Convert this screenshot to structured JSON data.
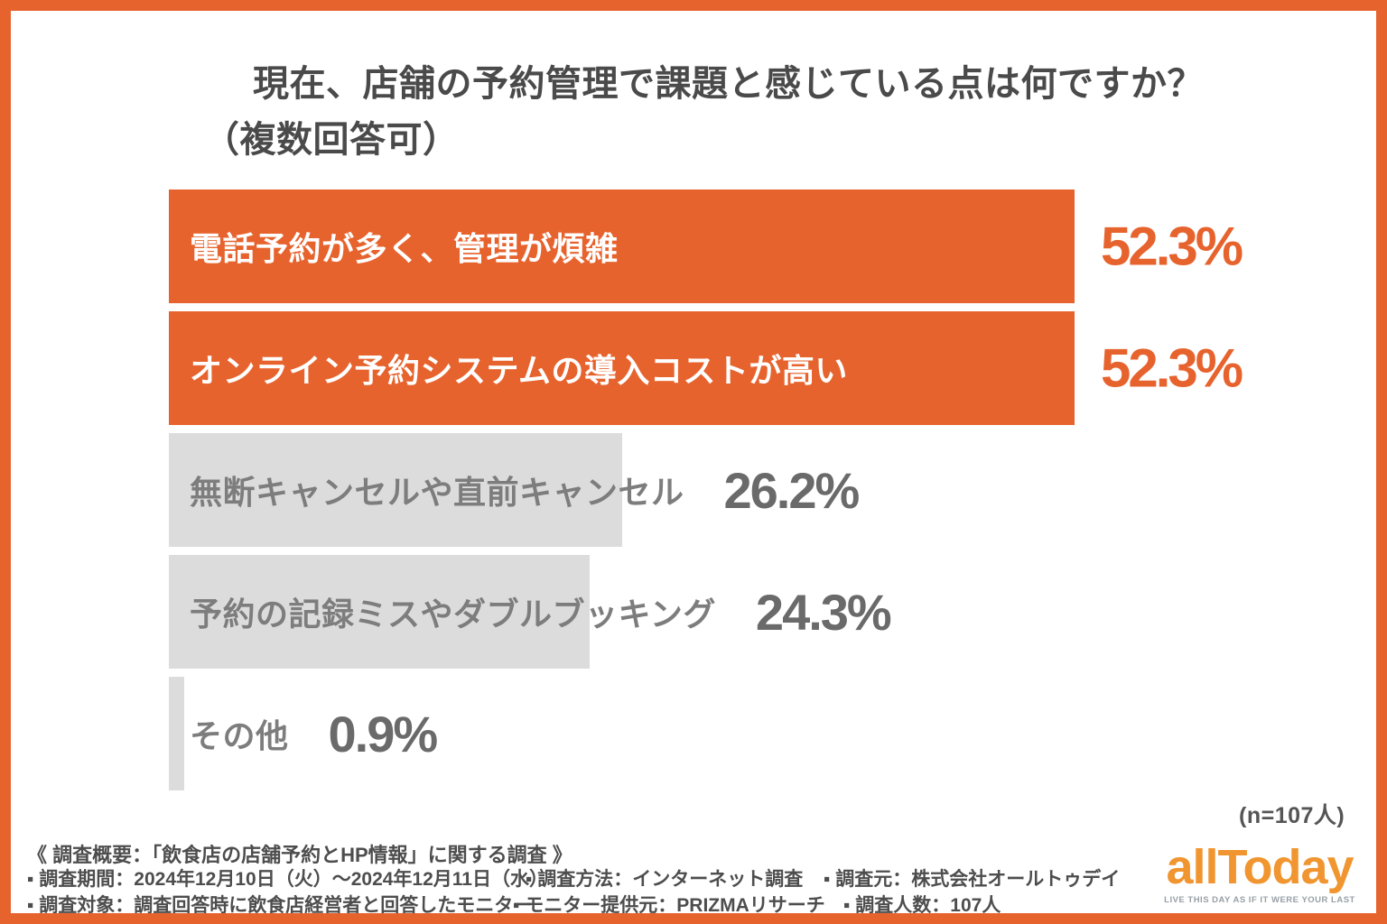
{
  "header": {
    "title_line1": "現在、店舗の予約管理で課題と感じている点は何ですか？",
    "title_line2": "（複数回答可）"
  },
  "chart_data": {
    "type": "bar",
    "orientation": "horizontal",
    "title": "現在、店舗の予約管理で課題と感じている点は何ですか？（複数回答可）",
    "categories": [
      "電話予約が多く、管理が煩雑",
      "オンライン予約システムの導入コストが高い",
      "無断キャンセルや直前キャンセル",
      "予約の記録ミスやダブルブッキング",
      "その他"
    ],
    "values": [
      52.3,
      52.3,
      26.2,
      24.3,
      0.9
    ],
    "value_labels": [
      "52.3%",
      "52.3%",
      "26.2%",
      "24.3%",
      "0.9%"
    ],
    "unit": "%",
    "axis_max": 52.3,
    "highlighted": [
      true,
      true,
      false,
      false,
      false
    ],
    "sample_note": "(n=107人)",
    "legend_position": "none",
    "grid": false
  },
  "colors": {
    "accent_orange": "#E7632E",
    "bar_gray": "#DCDCDC",
    "title_text": "#4A4A4A",
    "muted_label": "#7D7D7D",
    "muted_value": "#6A6A6A",
    "footer_text": "#4D4D4D",
    "logo_orange": "#F0952F",
    "tagline_gray": "#98A0A6"
  },
  "footer": {
    "heading": "《 調査概要：「飲食店の店舗予約とHP情報」に関する調査 》",
    "rows": [
      [
        "▪ 調査期間：2024年12月10日（火）〜2024年12月11日（水）",
        "▪ 調査方法：インターネット調査",
        "▪ 調査元：株式会社オールトゥデイ"
      ],
      [
        "▪ 調査対象：調査回答時に飲食店経営者と回答したモニター",
        "▪ モニター提供元：PRIZMAリサーチ",
        "▪ 調査人数：107人"
      ]
    ]
  },
  "logo": {
    "text": "allToday",
    "tagline": "LIVE THIS DAY AS IF IT WERE YOUR LAST"
  }
}
